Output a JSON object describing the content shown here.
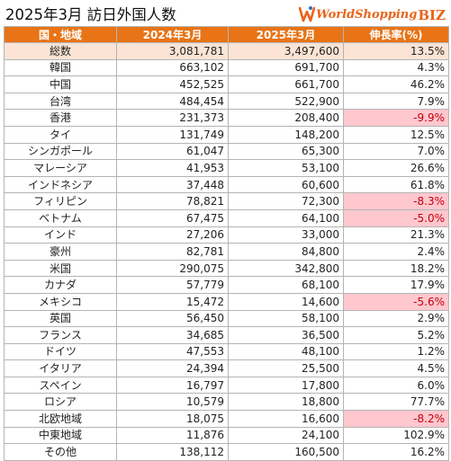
{
  "title": "2025年3月 訪日外国人数",
  "logo": {
    "main": "WorldShopping",
    "suffix": "BIZ",
    "color": "#e8641b"
  },
  "colors": {
    "header_bg": "#e87417",
    "total_bg": "#fbe4d5",
    "negative_bg": "#ffc7ce",
    "negative_text": "#c0000b"
  },
  "table": {
    "headers": [
      "国・地域",
      "2024年3月",
      "2025年3月",
      "伸長率(%)"
    ],
    "rows": [
      {
        "country": "総数",
        "y2024": "3,081,781",
        "y2025": "3,497,600",
        "rate": "13.5%",
        "negative": false,
        "total": true
      },
      {
        "country": "韓国",
        "y2024": "663,102",
        "y2025": "691,700",
        "rate": "4.3%",
        "negative": false
      },
      {
        "country": "中国",
        "y2024": "452,525",
        "y2025": "661,700",
        "rate": "46.2%",
        "negative": false
      },
      {
        "country": "台湾",
        "y2024": "484,454",
        "y2025": "522,900",
        "rate": "7.9%",
        "negative": false
      },
      {
        "country": "香港",
        "y2024": "231,373",
        "y2025": "208,400",
        "rate": "-9.9%",
        "negative": true
      },
      {
        "country": "タイ",
        "y2024": "131,749",
        "y2025": "148,200",
        "rate": "12.5%",
        "negative": false
      },
      {
        "country": "シンガポール",
        "y2024": "61,047",
        "y2025": "65,300",
        "rate": "7.0%",
        "negative": false
      },
      {
        "country": "マレーシア",
        "y2024": "41,953",
        "y2025": "53,100",
        "rate": "26.6%",
        "negative": false
      },
      {
        "country": "インドネシア",
        "y2024": "37,448",
        "y2025": "60,600",
        "rate": "61.8%",
        "negative": false
      },
      {
        "country": "フィリピン",
        "y2024": "78,821",
        "y2025": "72,300",
        "rate": "-8.3%",
        "negative": true
      },
      {
        "country": "ベトナム",
        "y2024": "67,475",
        "y2025": "64,100",
        "rate": "-5.0%",
        "negative": true
      },
      {
        "country": "インド",
        "y2024": "27,206",
        "y2025": "33,000",
        "rate": "21.3%",
        "negative": false
      },
      {
        "country": "豪州",
        "y2024": "82,781",
        "y2025": "84,800",
        "rate": "2.4%",
        "negative": false
      },
      {
        "country": "米国",
        "y2024": "290,075",
        "y2025": "342,800",
        "rate": "18.2%",
        "negative": false
      },
      {
        "country": "カナダ",
        "y2024": "57,779",
        "y2025": "68,100",
        "rate": "17.9%",
        "negative": false
      },
      {
        "country": "メキシコ",
        "y2024": "15,472",
        "y2025": "14,600",
        "rate": "-5.6%",
        "negative": true
      },
      {
        "country": "英国",
        "y2024": "56,450",
        "y2025": "58,100",
        "rate": "2.9%",
        "negative": false
      },
      {
        "country": "フランス",
        "y2024": "34,685",
        "y2025": "36,500",
        "rate": "5.2%",
        "negative": false
      },
      {
        "country": "ドイツ",
        "y2024": "47,553",
        "y2025": "48,100",
        "rate": "1.2%",
        "negative": false
      },
      {
        "country": "イタリア",
        "y2024": "24,394",
        "y2025": "25,500",
        "rate": "4.5%",
        "negative": false
      },
      {
        "country": "スペイン",
        "y2024": "16,797",
        "y2025": "17,800",
        "rate": "6.0%",
        "negative": false
      },
      {
        "country": "ロシア",
        "y2024": "10,579",
        "y2025": "18,800",
        "rate": "77.7%",
        "negative": false
      },
      {
        "country": "北欧地域",
        "y2024": "18,075",
        "y2025": "16,600",
        "rate": "-8.2%",
        "negative": true
      },
      {
        "country": "中東地域",
        "y2024": "11,876",
        "y2025": "24,100",
        "rate": "102.9%",
        "negative": false
      },
      {
        "country": "その他",
        "y2024": "138,112",
        "y2025": "160,500",
        "rate": "16.2%",
        "negative": false
      }
    ]
  }
}
